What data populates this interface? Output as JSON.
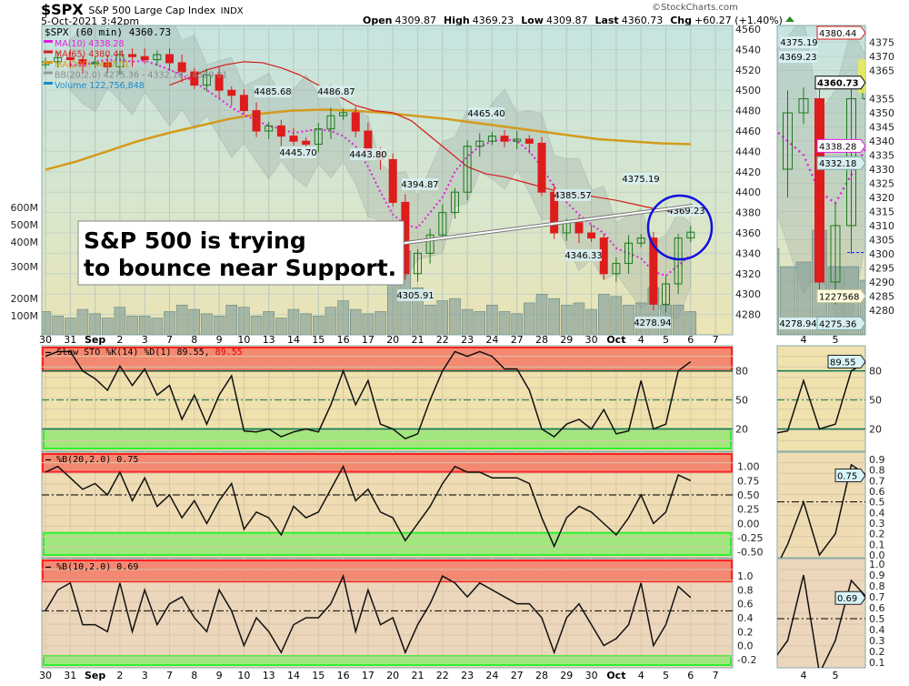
{
  "header": {
    "symbol": "$SPX",
    "name": "S&P 500 Large Cap Index",
    "exchange": "INDX",
    "datetime": "5-Oct-2021 3:42pm",
    "watermark": "©StockCharts.com",
    "open_label": "Open",
    "open": "4309.87",
    "high_label": "High",
    "high": "4369.23",
    "low_label": "Low",
    "low": "4309.87",
    "last_label": "Last",
    "last": "4360.73",
    "chg_label": "Chg",
    "chg": "+60.27 (+1.40%)"
  },
  "colors": {
    "up": "#1a7a1a",
    "down": "#dd1c1c",
    "ma10": "#e020e0",
    "ma65": "#d41c1c",
    "ma200": "#d49a1c",
    "volume": "#1e8ac8",
    "overbought": "#f4806a",
    "oversold": "#98e878",
    "support_circle": "#1010e0"
  },
  "annotation": {
    "line1": "S&P 500 is trying",
    "line2": "to bounce near Support."
  },
  "chart_data": [
    {
      "type": "candlestick",
      "title": "$SPX (60 min) 4360.73",
      "x_range": [
        "30 Aug 2021",
        "5 Oct 2021 3:42pm"
      ],
      "x_tick_labels": [
        "30",
        "31",
        "Sep",
        "2",
        "3",
        "7",
        "8",
        "9",
        "10",
        "13",
        "14",
        "15",
        "16",
        "17",
        "20",
        "21",
        "22",
        "23",
        "24",
        "27",
        "28",
        "29",
        "30",
        "Oct",
        "4",
        "5",
        "6",
        "7"
      ],
      "ylim": [
        4270,
        4565
      ],
      "y_ticks": [
        4560,
        4540,
        4520,
        4500,
        4480,
        4460,
        4440,
        4420,
        4400,
        4380,
        4360,
        4340,
        4320,
        4300,
        4280
      ],
      "close": [
        4528,
        4532,
        4530,
        4526,
        4527,
        4523,
        4535,
        4533,
        4530,
        4535,
        4527,
        4518,
        4505,
        4515,
        4500,
        4495,
        4480,
        4460,
        4465,
        4455,
        4450,
        4447,
        4462,
        4475,
        4478,
        4460,
        4440,
        4432,
        4390,
        4320,
        4340,
        4358,
        4380,
        4400,
        4445,
        4450,
        4455,
        4450,
        4452,
        4448,
        4400,
        4360,
        4370,
        4360,
        4355,
        4320,
        4330,
        4350,
        4355,
        4290,
        4310,
        4355,
        4360.73
      ],
      "volume_millions": [
        120,
        100,
        90,
        130,
        110,
        90,
        140,
        100,
        100,
        90,
        120,
        150,
        130,
        110,
        100,
        150,
        140,
        100,
        120,
        90,
        130,
        110,
        100,
        140,
        170,
        130,
        110,
        120,
        260,
        400,
        230,
        150,
        170,
        180,
        130,
        120,
        150,
        120,
        110,
        160,
        200,
        180,
        150,
        160,
        130,
        200,
        190,
        150,
        160,
        230,
        150,
        150,
        120
      ],
      "volume_ticks": [
        "600M",
        "500M",
        "400M",
        "300M",
        "200M",
        "100M"
      ],
      "legend": [
        {
          "label": "MA(10) 4338.28",
          "color": "#e020e0"
        },
        {
          "label": "MA(65) 4380.44",
          "color": "#d41c1c"
        },
        {
          "label": "MA(200) 4447.01",
          "color": "#d49a1c"
        },
        {
          "label": "BB(20,2.0) 4275.36 - 4332.18 - 4389.01",
          "color": "#999999"
        },
        {
          "label": "Volume 122,756,848",
          "color": "#1e8ac8"
        }
      ],
      "ma200": [
        4422,
        4430,
        4440,
        4450,
        4458,
        4465,
        4472,
        4477,
        4480,
        4481,
        4480,
        4478,
        4475,
        4472,
        4468,
        4464,
        4460,
        4456,
        4452,
        4450,
        4448,
        4447
      ],
      "ma65_start_index": 24,
      "ma65": [
        4505,
        4512,
        4520,
        4525,
        4528,
        4527,
        4522,
        4515,
        4505,
        4495,
        4485,
        4480,
        4478,
        4470,
        4455,
        4440,
        4425,
        4418,
        4415,
        4410,
        4405,
        4400,
        4398,
        4395,
        4392,
        4388,
        4384,
        4381,
        4380.44
      ],
      "ma10": [
        4525,
        4524,
        4528,
        4530,
        4530,
        4528,
        4529,
        4525,
        4520,
        4515,
        4508,
        4500,
        4492,
        4483,
        4476,
        4470,
        4465,
        4462,
        4458,
        4460,
        4462,
        4460,
        4455,
        4445,
        4425,
        4400,
        4378,
        4368,
        4365,
        4380,
        4395,
        4420,
        4435,
        4445,
        4450,
        4452,
        4450,
        4440,
        4425,
        4405,
        4390,
        4378,
        4368,
        4360,
        4345,
        4340,
        4335,
        4322,
        4318,
        4328,
        4338.28
      ],
      "price_labels": [
        "4485.68",
        "4486.87",
        "4445.70",
        "4443.80",
        "4465.40",
        "4394.87",
        "4385.57",
        "4346.33",
        "4375.19",
        "4369.23",
        "4305.91",
        "4278.94"
      ],
      "axis_tags": {
        "ma65": "4380.44",
        "last": "4360.73",
        "ma10": "4338.28",
        "bb_mid": "4332.18",
        "volume": "1227568",
        "bb_low": "4275.36"
      },
      "mini_y_ticks": [
        4375,
        4370,
        4365,
        4355,
        4350,
        4345,
        4340,
        4335,
        4330,
        4325,
        4320,
        4315,
        4310,
        4305,
        4300,
        4295,
        4290,
        4285,
        4280
      ],
      "mini_x_labels": [
        "4",
        "5"
      ]
    },
    {
      "type": "line",
      "title": "Slow STO %K(14) %D(1) 89.55, 89.55",
      "title_main": "Slow STO %K(14) %D(1) 89.55,",
      "title_red": "89.55",
      "ylim": [
        -3,
        106
      ],
      "y_ticks": [
        "80",
        "50",
        "20"
      ],
      "overbought": 80,
      "oversold": 20,
      "midline": 50,
      "last_tag": "89.55",
      "values": [
        95,
        100,
        100,
        80,
        72,
        60,
        85,
        65,
        82,
        55,
        65,
        30,
        55,
        25,
        55,
        75,
        18,
        17,
        20,
        12,
        17,
        20,
        17,
        45,
        80,
        45,
        70,
        25,
        20,
        10,
        15,
        50,
        80,
        100,
        95,
        100,
        95,
        82,
        82,
        60,
        20,
        12,
        25,
        30,
        20,
        40,
        15,
        18,
        70,
        20,
        25,
        80,
        89.55
      ]
    },
    {
      "type": "line",
      "title": "%B(20,2.0) 0.75",
      "ylim": [
        -0.6,
        1.25
      ],
      "y_ticks": [
        "1.00",
        "0.75",
        "0.50",
        "0.25",
        "0.00",
        "-0.25",
        "-0.50"
      ],
      "mini_y_ticks": [
        "0.9",
        "0.8",
        "0.7",
        "0.6",
        "0.5",
        "0.4",
        "0.3",
        "0.2",
        "0.1",
        "0.0"
      ],
      "overbought": 1.0,
      "oversold": -0.1,
      "midline": 0.5,
      "last_tag": "0.75",
      "values": [
        0.9,
        1.0,
        0.8,
        0.6,
        0.7,
        0.5,
        0.9,
        0.4,
        0.8,
        0.3,
        0.5,
        0.1,
        0.4,
        0.0,
        0.4,
        0.7,
        -0.1,
        0.2,
        0.1,
        -0.2,
        0.3,
        0.1,
        0.2,
        0.6,
        1.0,
        0.4,
        0.6,
        0.2,
        0.1,
        -0.3,
        0.0,
        0.3,
        0.7,
        1.0,
        0.9,
        0.9,
        0.8,
        0.8,
        0.8,
        0.7,
        0.1,
        -0.4,
        0.1,
        0.3,
        0.2,
        0.0,
        -0.2,
        0.1,
        0.5,
        0.0,
        0.2,
        0.85,
        0.75
      ]
    },
    {
      "type": "line",
      "title": "%B(10,2.0) 0.69",
      "ylim": [
        -0.32,
        1.25
      ],
      "y_ticks": [
        "1.0",
        "0.8",
        "0.6",
        "0.4",
        "0.2",
        "0.0",
        "-0.2"
      ],
      "mini_y_ticks": [
        "1.0",
        "0.9",
        "0.8",
        "0.7",
        "0.6",
        "0.5",
        "0.4",
        "0.3",
        "0.2",
        "0.1"
      ],
      "overbought": 1.0,
      "oversold": -0.1,
      "midline": 0.5,
      "last_tag": "0.69",
      "values": [
        0.5,
        0.8,
        0.9,
        0.3,
        0.3,
        0.2,
        0.9,
        0.2,
        0.8,
        0.3,
        0.6,
        0.7,
        0.4,
        0.2,
        0.8,
        0.5,
        0.0,
        0.4,
        0.2,
        -0.1,
        0.3,
        0.4,
        0.4,
        0.6,
        1.0,
        0.2,
        0.8,
        0.3,
        0.4,
        -0.1,
        0.3,
        0.6,
        1.0,
        0.9,
        0.7,
        0.9,
        0.8,
        0.7,
        0.6,
        0.6,
        0.4,
        -0.1,
        0.4,
        0.6,
        0.3,
        0.0,
        0.1,
        0.3,
        0.9,
        0.0,
        0.3,
        0.85,
        0.69
      ]
    }
  ]
}
